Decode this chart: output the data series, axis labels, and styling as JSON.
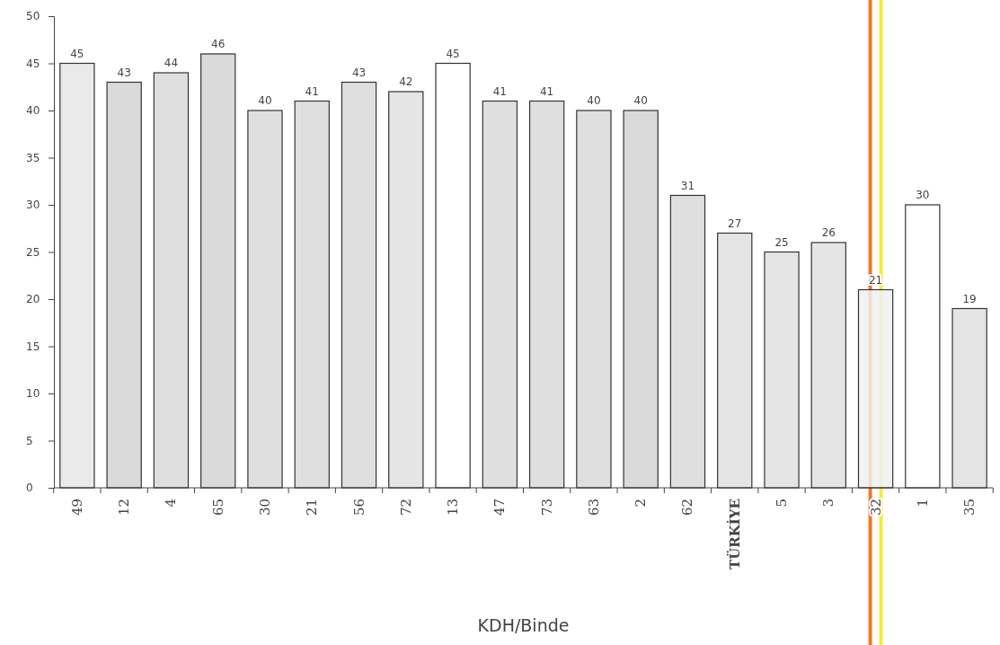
{
  "chart_data": {
    "type": "bar",
    "xlabel": "KDH/Binde",
    "categories": [
      "49",
      "12",
      "4",
      "65",
      "30",
      "21",
      "56",
      "72",
      "13",
      "47",
      "73",
      "63",
      "2",
      "62",
      "TÜRKİYE",
      "5",
      "3",
      "32",
      "1",
      "35"
    ],
    "values": [
      45,
      43,
      44,
      46,
      40,
      41,
      43,
      42,
      45,
      41,
      41,
      40,
      40,
      31,
      27,
      25,
      26,
      21,
      30,
      19
    ],
    "colors": [
      "#e6e6e6",
      "#d4d4d4",
      "#d9d9d9",
      "#d4d4d4",
      "#d9d9d9",
      "#d9d9d9",
      "#d9d9d9",
      "#e0e0e0",
      "#ffffff",
      "#d9d9d9",
      "#d9d9d9",
      "#d9d9d9",
      "#d4d4d4",
      "#d9d9d9",
      "#e0e0e0",
      "#e0e0e0",
      "#e0e0e0",
      "#f0f0f0",
      "#ffffff",
      "#e0e0e0"
    ],
    "ylim": [
      0,
      50
    ],
    "yticks": [
      0,
      5,
      10,
      15,
      20,
      25,
      30,
      35,
      40,
      45,
      50
    ],
    "grid": false,
    "data_labels": true,
    "ref_lines": [
      {
        "axis": "x",
        "value": "32",
        "color": "#f07828"
      },
      {
        "axis": "x",
        "value": "32",
        "color": "#f5eb3c"
      }
    ]
  }
}
